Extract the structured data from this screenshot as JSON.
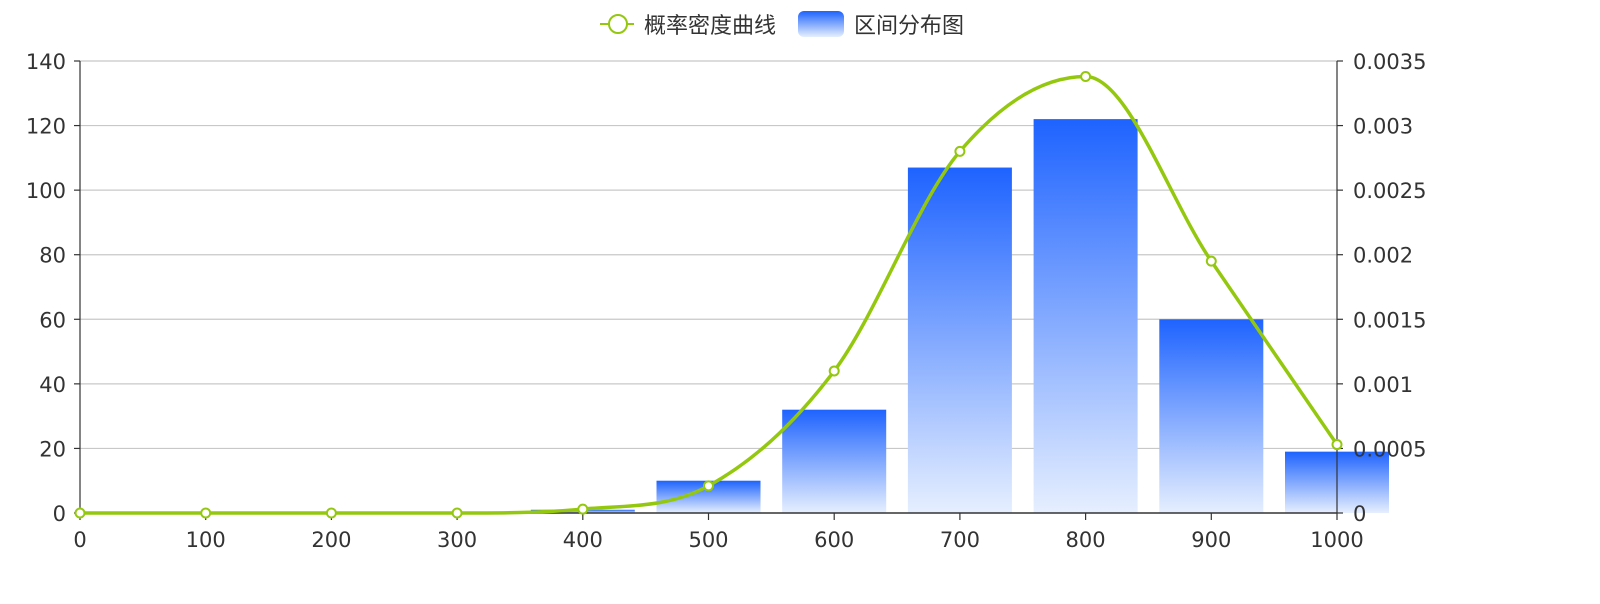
{
  "chart_data": {
    "type": "bar+line",
    "title": "",
    "legend": {
      "position": "top-center",
      "items": [
        {
          "name": "概率密度曲线",
          "type": "line",
          "color": "#94c80f"
        },
        {
          "name": "区间分布图",
          "type": "bar",
          "color_top": "#1e63ff",
          "color_bottom": "#e6efff"
        }
      ]
    },
    "x_axis": {
      "min": 0,
      "max": 1000,
      "ticks": [
        0,
        100,
        200,
        300,
        400,
        500,
        600,
        700,
        800,
        900,
        1000
      ]
    },
    "y_left": {
      "min": 0,
      "max": 140,
      "ticks": [
        0,
        20,
        40,
        60,
        80,
        100,
        120,
        140
      ]
    },
    "y_right": {
      "min": 0,
      "max": 0.0035,
      "ticks": [
        0,
        0.0005,
        0.001,
        0.0015,
        0.002,
        0.0025,
        0.003,
        0.0035
      ],
      "tick_labels": [
        "0",
        "0.0005",
        "0.001",
        "0.0015",
        "0.002",
        "0.0025",
        "0.003",
        "0.0035"
      ]
    },
    "grid": true,
    "series": [
      {
        "name": "区间分布图",
        "type": "bar",
        "axis": "left",
        "x": [
          400,
          500,
          600,
          700,
          800,
          900,
          1000
        ],
        "values": [
          1,
          10,
          32,
          107,
          122,
          60,
          19
        ]
      },
      {
        "name": "概率密度曲线",
        "type": "line",
        "axis": "right",
        "smooth": true,
        "x": [
          0,
          100,
          200,
          300,
          400,
          500,
          600,
          700,
          800,
          900,
          1000
        ],
        "values": [
          0,
          0,
          0,
          0,
          3e-05,
          0.00021,
          0.0011,
          0.0028,
          0.00338,
          0.00195,
          0.00053
        ]
      }
    ]
  }
}
